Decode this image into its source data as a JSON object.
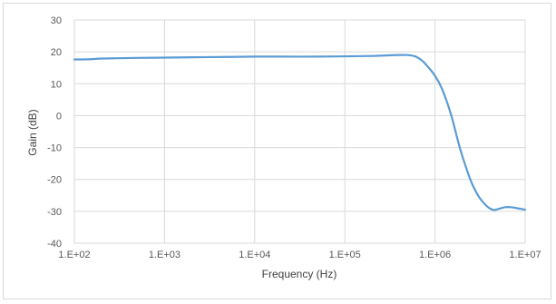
{
  "chart_data": {
    "type": "line",
    "title": "",
    "xlabel": "Frequency (Hz)",
    "ylabel": "Gain (dB)",
    "x_scale": "log",
    "xlim": [
      100,
      10000000
    ],
    "ylim": [
      -40,
      30
    ],
    "x_ticks": [
      "1.E+02",
      "1.E+03",
      "1.E+04",
      "1.E+05",
      "1.E+06",
      "1.E+07"
    ],
    "x_tick_values": [
      100,
      1000,
      10000,
      100000,
      1000000,
      10000000
    ],
    "y_ticks": [
      "30",
      "20",
      "10",
      "0",
      "-10",
      "-20",
      "-30",
      "-40"
    ],
    "y_tick_values": [
      30,
      20,
      10,
      0,
      -10,
      -20,
      -30,
      -40
    ],
    "grid": true,
    "legend": "none",
    "series_color": "#5b9bd5",
    "grid_color": "#d9d9d9",
    "series": [
      {
        "x": [
          100,
          150,
          200,
          300,
          500,
          1000,
          2000,
          5000,
          10000,
          20000,
          50000,
          100000,
          200000,
          300000,
          400000,
          500000,
          600000,
          700000,
          800000,
          1000000,
          1200000,
          1500000,
          1800000,
          2000000,
          2500000,
          3000000,
          3500000,
          4000000,
          4500000,
          5000000,
          6000000,
          7000000,
          8000000,
          10000000
        ],
        "y": [
          17.6,
          17.7,
          17.9,
          18.0,
          18.1,
          18.2,
          18.3,
          18.4,
          18.5,
          18.5,
          18.5,
          18.6,
          18.7,
          18.9,
          19.0,
          19.0,
          18.6,
          17.5,
          15.9,
          12.5,
          8.3,
          0.5,
          -8.0,
          -12.5,
          -20.5,
          -25.0,
          -27.5,
          -29.0,
          -29.6,
          -29.3,
          -28.7,
          -28.7,
          -29.0,
          -29.5
        ]
      }
    ]
  }
}
